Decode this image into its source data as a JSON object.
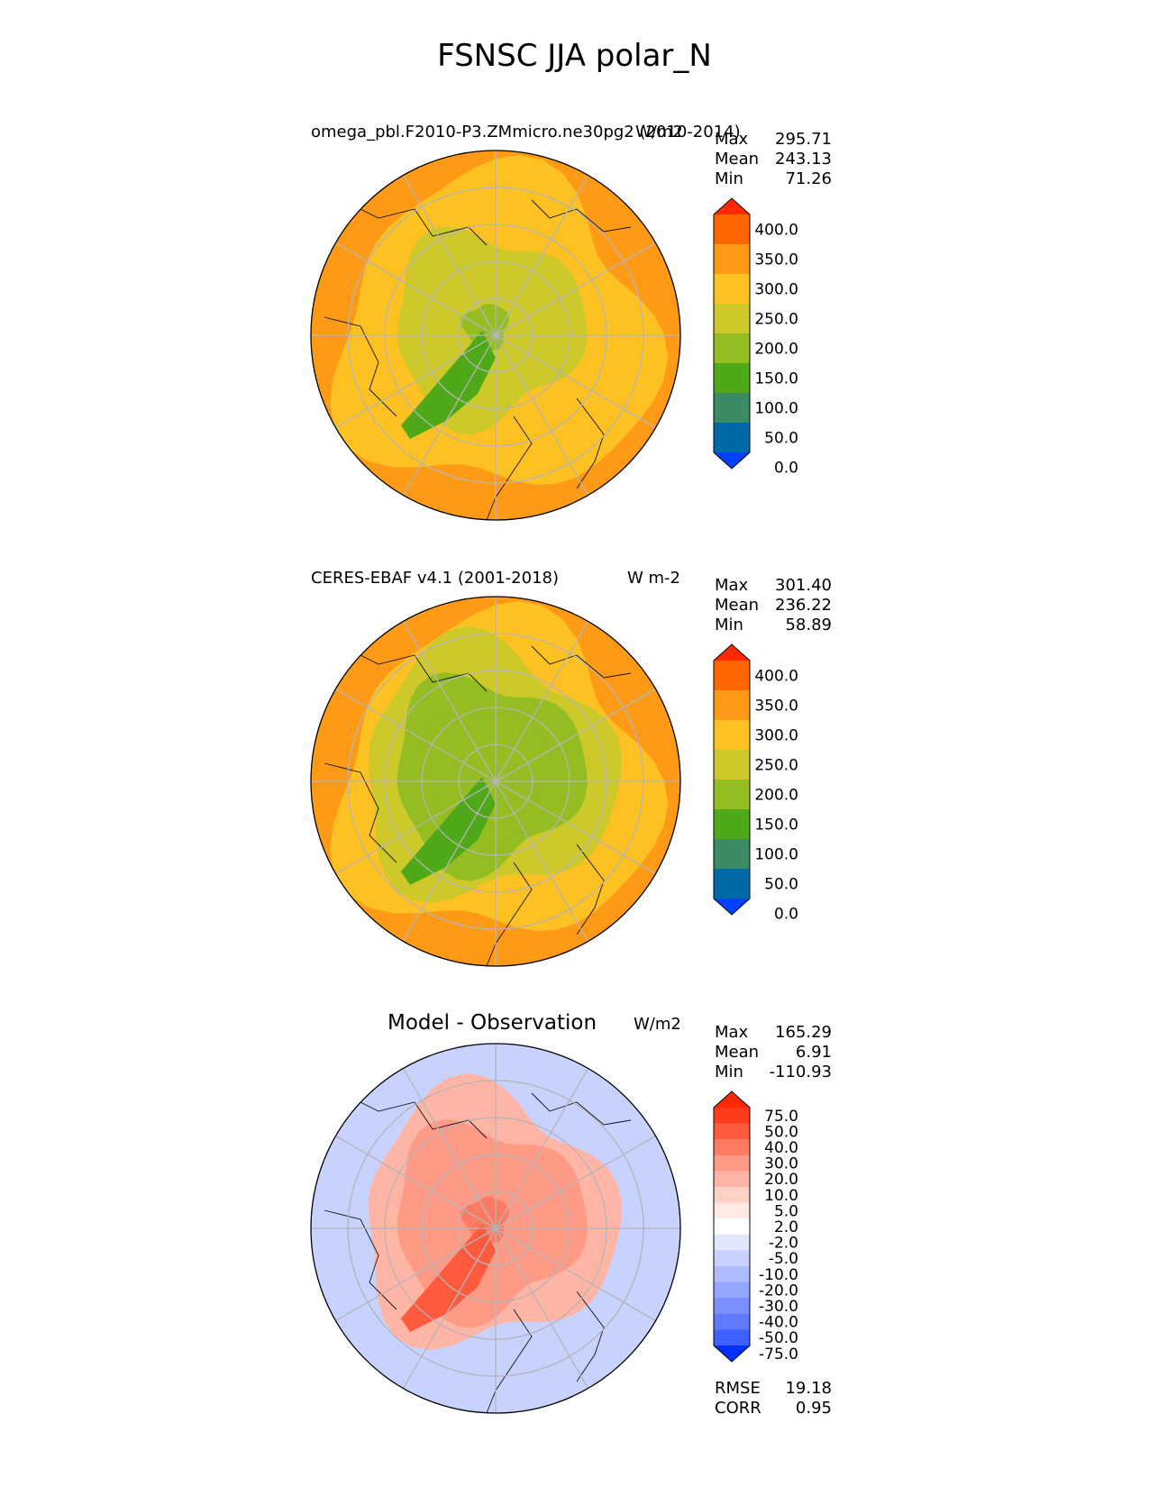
{
  "title": "FSNSC JJA polar_N",
  "panels": [
    {
      "title": "omega_pbl.F2010-P3.ZMmicro.ne30pg2 (2010-2014)",
      "units": "W/m2",
      "stats": [
        {
          "label": "Max",
          "value": "295.71"
        },
        {
          "label": "Mean",
          "value": "243.13"
        },
        {
          "label": "Min",
          "value": "71.26"
        }
      ],
      "colorbar": {
        "levels": [
          "400.0",
          "350.0",
          "300.0",
          "250.0",
          "200.0",
          "150.0",
          "100.0",
          "50.0",
          "0.0"
        ],
        "colors": [
          "#ff2a00",
          "#ff6600",
          "#ff9a17",
          "#fdc222",
          "#cdc92a",
          "#93bd20",
          "#4ea817",
          "#3a8a63",
          "#006aa6",
          "#0040ff"
        ]
      },
      "field": {
        "background_value": 300,
        "ring_values": [
          275,
          250,
          225,
          200,
          160
        ],
        "greenland_value": 110
      }
    },
    {
      "title": "CERES-EBAF v4.1 (2001-2018)",
      "units": "W m-2",
      "stats": [
        {
          "label": "Max",
          "value": "301.40"
        },
        {
          "label": "Mean",
          "value": "236.22"
        },
        {
          "label": "Min",
          "value": "58.89"
        }
      ],
      "colorbar": {
        "levels": [
          "400.0",
          "350.0",
          "300.0",
          "250.0",
          "200.0",
          "150.0",
          "100.0",
          "50.0",
          "0.0"
        ],
        "colors": [
          "#ff2a00",
          "#ff6600",
          "#ff9a17",
          "#fdc222",
          "#cdc92a",
          "#93bd20",
          "#4ea817",
          "#3a8a63",
          "#006aa6",
          "#0040ff"
        ]
      },
      "field": {
        "background_value": 300,
        "ring_values": [
          260,
          230,
          190,
          170,
          160
        ],
        "greenland_value": 110
      }
    },
    {
      "title": "Model - Observation",
      "units": "W/m2",
      "stats": [
        {
          "label": "Max",
          "value": "165.29"
        },
        {
          "label": "Mean",
          "value": "6.91"
        },
        {
          "label": "Min",
          "value": "-110.93"
        }
      ],
      "colorbar": {
        "levels": [
          "75.0",
          "50.0",
          "40.0",
          "30.0",
          "20.0",
          "10.0",
          "5.0",
          "2.0",
          "-2.0",
          "-5.0",
          "-10.0",
          "-20.0",
          "-30.0",
          "-40.0",
          "-50.0",
          "-75.0"
        ],
        "colors": [
          "#ff2a00",
          "#ff3c1c",
          "#ff5a3e",
          "#ff7a62",
          "#ff9a86",
          "#ffb5a6",
          "#ffd1c7",
          "#ffe9e4",
          "#ffffff",
          "#e2e7ff",
          "#c8d2ff",
          "#aebcff",
          "#94a6ff",
          "#7a90ff",
          "#5f79ff",
          "#3f5fff",
          "#0030ff"
        ]
      },
      "field": {
        "background_value": -8,
        "ring_values": [
          -8,
          12,
          25,
          22,
          35
        ],
        "greenland_value": 40
      }
    }
  ],
  "metrics": [
    {
      "label": "RMSE",
      "value": "19.18"
    },
    {
      "label": "CORR",
      "value": "0.95"
    }
  ]
}
